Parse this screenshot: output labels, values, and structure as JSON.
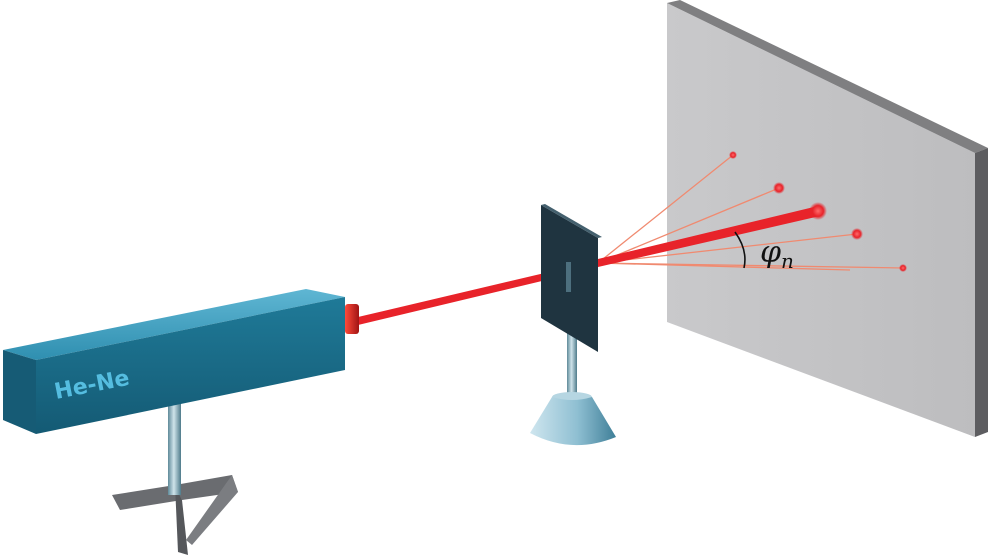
{
  "laser": {
    "label": "He-Ne",
    "body_color": "#1e6f8c",
    "beam_color": "#e8232a"
  },
  "angle": {
    "symbol": "φ",
    "subscript": "n"
  },
  "diffraction": {
    "central_spot_color": "#e8232a",
    "order_ray_color": "#f08a70"
  }
}
